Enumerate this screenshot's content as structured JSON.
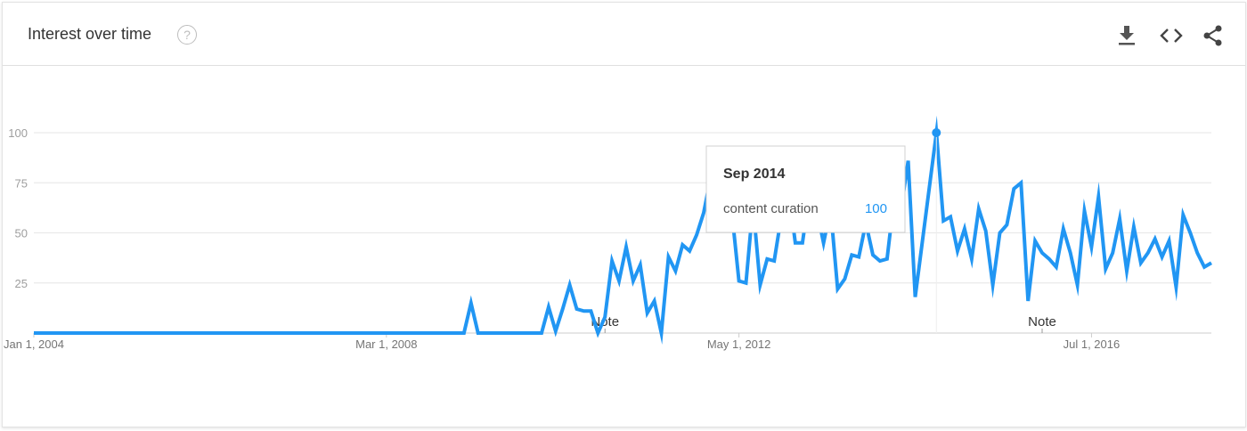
{
  "header": {
    "title": "Interest over time",
    "help_icon": "help-circle-icon",
    "actions": [
      {
        "name": "download-button",
        "icon": "download-icon"
      },
      {
        "name": "embed-button",
        "icon": "code-icon"
      },
      {
        "name": "share-button",
        "icon": "share-icon"
      }
    ]
  },
  "chart_data": {
    "type": "line",
    "title": "",
    "xlabel": "",
    "ylabel": "",
    "ylim": [
      0,
      100
    ],
    "yticks": [
      100,
      75,
      50,
      25
    ],
    "xticks": [
      {
        "label": "Jan 1, 2004",
        "value": "2004-01"
      },
      {
        "label": "Mar 1, 2008",
        "value": "2008-03"
      },
      {
        "label": "May 1, 2012",
        "value": "2012-05"
      },
      {
        "label": "Jul 1, 2016",
        "value": "2016-07"
      }
    ],
    "xrange": [
      "2004-01",
      "2017-12"
    ],
    "grid": true,
    "color": "#2196f3",
    "series": [
      {
        "name": "content curation",
        "points": [
          [
            "2004-01",
            0
          ],
          [
            "2009-02",
            0
          ],
          [
            "2009-03",
            15
          ],
          [
            "2009-04",
            0
          ],
          [
            "2010-01",
            0
          ],
          [
            "2010-02",
            13
          ],
          [
            "2010-03",
            1
          ],
          [
            "2010-04",
            12
          ],
          [
            "2010-05",
            24
          ],
          [
            "2010-06",
            12
          ],
          [
            "2010-07",
            11
          ],
          [
            "2010-08",
            11
          ],
          [
            "2010-09",
            0
          ],
          [
            "2010-10",
            8
          ],
          [
            "2010-11",
            36
          ],
          [
            "2010-12",
            26
          ],
          [
            "2011-01",
            43
          ],
          [
            "2011-02",
            26
          ],
          [
            "2011-03",
            34
          ],
          [
            "2011-04",
            10
          ],
          [
            "2011-05",
            16
          ],
          [
            "2011-06",
            0
          ],
          [
            "2011-07",
            38
          ],
          [
            "2011-08",
            31
          ],
          [
            "2011-09",
            44
          ],
          [
            "2011-10",
            41
          ],
          [
            "2011-11",
            49
          ],
          [
            "2011-12",
            60
          ],
          [
            "2012-01",
            78
          ],
          [
            "2012-02",
            68
          ],
          [
            "2012-03",
            65
          ],
          [
            "2012-04",
            60
          ],
          [
            "2012-05",
            26
          ],
          [
            "2012-06",
            25
          ],
          [
            "2012-07",
            64
          ],
          [
            "2012-08",
            24
          ],
          [
            "2012-09",
            37
          ],
          [
            "2012-10",
            36
          ],
          [
            "2012-11",
            58
          ],
          [
            "2012-12",
            72
          ],
          [
            "2013-01",
            45
          ],
          [
            "2013-02",
            45
          ],
          [
            "2013-03",
            70
          ],
          [
            "2013-04",
            62
          ],
          [
            "2013-05",
            45
          ],
          [
            "2013-06",
            62
          ],
          [
            "2013-07",
            22
          ],
          [
            "2013-08",
            27
          ],
          [
            "2013-09",
            39
          ],
          [
            "2013-10",
            38
          ],
          [
            "2013-11",
            55
          ],
          [
            "2013-12",
            39
          ],
          [
            "2014-01",
            36
          ],
          [
            "2014-02",
            37
          ],
          [
            "2014-03",
            67
          ],
          [
            "2014-04",
            62
          ],
          [
            "2014-05",
            86
          ],
          [
            "2014-06",
            18
          ],
          [
            "2014-09",
            100
          ],
          [
            "2014-10",
            56
          ],
          [
            "2014-11",
            58
          ],
          [
            "2014-12",
            41
          ],
          [
            "2015-01",
            52
          ],
          [
            "2015-02",
            37
          ],
          [
            "2015-03",
            62
          ],
          [
            "2015-04",
            51
          ],
          [
            "2015-05",
            24
          ],
          [
            "2015-06",
            50
          ],
          [
            "2015-07",
            54
          ],
          [
            "2015-08",
            72
          ],
          [
            "2015-09",
            75
          ],
          [
            "2015-10",
            16
          ],
          [
            "2015-11",
            46
          ],
          [
            "2015-12",
            40
          ],
          [
            "2016-01",
            37
          ],
          [
            "2016-02",
            33
          ],
          [
            "2016-03",
            52
          ],
          [
            "2016-04",
            40
          ],
          [
            "2016-05",
            24
          ],
          [
            "2016-06",
            61
          ],
          [
            "2016-07",
            43
          ],
          [
            "2016-08",
            68
          ],
          [
            "2016-09",
            32
          ],
          [
            "2016-10",
            40
          ],
          [
            "2016-11",
            57
          ],
          [
            "2016-12",
            31
          ],
          [
            "2017-01",
            53
          ],
          [
            "2017-02",
            35
          ],
          [
            "2017-03",
            40
          ],
          [
            "2017-04",
            47
          ],
          [
            "2017-05",
            38
          ],
          [
            "2017-06",
            46
          ],
          [
            "2017-07",
            23
          ],
          [
            "2017-08",
            59
          ],
          [
            "2017-09",
            50
          ],
          [
            "2017-10",
            40
          ],
          [
            "2017-11",
            33
          ],
          [
            "2017-12",
            35
          ]
        ]
      }
    ],
    "notes": [
      {
        "label": "Note",
        "x": "2010-10"
      },
      {
        "label": "Note",
        "x": "2015-12"
      }
    ],
    "tooltip": {
      "date": "Sep 2014",
      "term": "content curation",
      "value": "100",
      "x": "2014-09"
    }
  }
}
